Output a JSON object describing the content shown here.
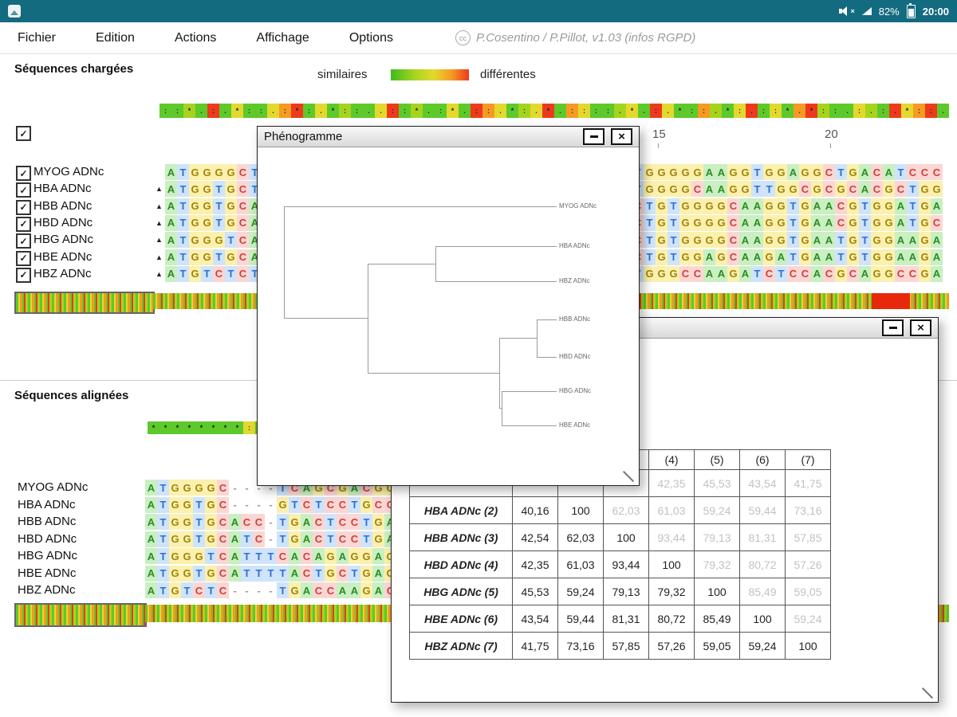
{
  "status_bar": {
    "battery": "82%",
    "time": "20:00"
  },
  "menu": {
    "items": [
      "Fichier",
      "Edition",
      "Actions",
      "Affichage",
      "Options"
    ],
    "credit_icon": "cc",
    "credit": "P.Cosentino / P.Pillot, v1.03 (infos RGPD)"
  },
  "palette": {
    "g": "#5ec92a",
    "e": "#a6d41e",
    "y": "#e3d92e",
    "o": "#f59a23",
    "r": "#ee3a1c"
  },
  "nt_colors": {
    "A": {
      "bg": "#c9efc2",
      "fg": "#2e8b22"
    },
    "T": {
      "bg": "#cfe4fb",
      "fg": "#2f6fd0"
    },
    "G": {
      "bg": "#fbf0ae",
      "fg": "#a08508"
    },
    "C": {
      "bg": "#fbd7d4",
      "fg": "#d04038"
    },
    "-": {
      "bg": "transparent",
      "fg": "#9a9a9a"
    }
  },
  "loaded_section": {
    "title": "Séquences chargées",
    "legend_left": "similaires",
    "legend_right": "différentes",
    "ruler": [
      "15",
      "20"
    ],
    "consensus": {
      "colors": "ggegrgyggyorgygeggyrgeggygroygeyrgoyggeygryggoegyrgygoreggyegryorg",
      "symbols": "::*.:.*::.:*:.*::..::*.:*.::.*:.*.::::.*.:.*::.*:.::*.*::.:.:.*::."
    },
    "sequences": [
      {
        "name": "MYOG ADNc",
        "checked": true,
        "marker": "",
        "left": "ATGGGGCTC",
        "right": "TGGGGGAAGGTGGAGGCTGACATCCC"
      },
      {
        "name": "HBA ADNc",
        "checked": true,
        "marker": "▲",
        "left": "ATGGTGCTG",
        "right": "TGGGGCAAGGTTGGCGCGCACGCTGG"
      },
      {
        "name": "HBB ADNc",
        "checked": true,
        "marker": "▲",
        "left": "ATGGTGCAC",
        "right": "CTGTGGGGCAAGGTGAACGTGGATGA"
      },
      {
        "name": "HBD ADNc",
        "checked": true,
        "marker": "▲",
        "left": "ATGGTGCAT",
        "right": "CTGTGGGGCAAGGTGAACGTGGATGC"
      },
      {
        "name": "HBG ADNc",
        "checked": true,
        "marker": "▲",
        "left": "ATGGGTCAT",
        "right": "CTGTGGGGCAAGGTGAATGTGGAAGA"
      },
      {
        "name": "HBE ADNc",
        "checked": true,
        "marker": "▲",
        "left": "ATGGTGCAT",
        "right": "CTGTGGAGCAAGATGAATGTGGAAGA"
      },
      {
        "name": "HBZ ADNc",
        "checked": true,
        "marker": "▲",
        "left": "ATGTCTCTG",
        "right": "TGGGCCAAGATCTCCACGCAGGCCGA"
      }
    ]
  },
  "aligned_section": {
    "title": "Séquences alignées",
    "consensus": {
      "colors": "ggggggggyggrggggyggggrggyggggogggggygggg",
      "symbols": "********:**.****:****.**:****.*****:****"
    },
    "sequences": [
      {
        "name": "MYOG ADNc",
        "seq": "ATGGGGC----TCAGCGACGG"
      },
      {
        "name": "HBA ADNc",
        "seq": "ATGGTGC----GTCTCCTGCC"
      },
      {
        "name": "HBB ADNc",
        "seq": "ATGGTGCACC-TGACTCCTGA"
      },
      {
        "name": "HBD ADNc",
        "seq": "ATGGTGCATC-TGACTCCTGA"
      },
      {
        "name": "HBG ADNc",
        "seq": "ATGGGTCATTTCACAGAGGAG"
      },
      {
        "name": "HBE ADNc",
        "seq": "ATGGTGCATTTTACTGCTGAG"
      },
      {
        "name": "HBZ ADNc",
        "seq": "ATGTCTC----TGACCAAGAC"
      }
    ]
  },
  "phenogram_window": {
    "title": "Phénogramme",
    "leaves": [
      "MYOG ADNc",
      "HBA ADNc",
      "HBZ ADNc",
      "HBB ADNc",
      "HBD ADNc",
      "HBG ADNc",
      "HBE ADNc"
    ]
  },
  "matrix_window": {
    "title": "",
    "columns": [
      "",
      "",
      "",
      "(4)",
      "(5)",
      "(6)",
      "(7)"
    ],
    "rows": [
      {
        "label": "",
        "values": [
          "",
          "",
          "",
          "42,35",
          "45,53",
          "43,54",
          "41,75"
        ],
        "black_count": 1
      },
      {
        "label": "HBA ADNc (2)",
        "values": [
          "40,16",
          "100",
          "62,03",
          "61,03",
          "59,24",
          "59,44",
          "73,16"
        ],
        "black_count": 2
      },
      {
        "label": "HBB ADNc (3)",
        "values": [
          "42,54",
          "62,03",
          "100",
          "93,44",
          "79,13",
          "81,31",
          "57,85"
        ],
        "black_count": 3
      },
      {
        "label": "HBD ADNc (4)",
        "values": [
          "42,35",
          "61,03",
          "93,44",
          "100",
          "79,32",
          "80,72",
          "57,26"
        ],
        "black_count": 4
      },
      {
        "label": "HBG ADNc (5)",
        "values": [
          "45,53",
          "59,24",
          "79,13",
          "79,32",
          "100",
          "85,49",
          "59,05"
        ],
        "black_count": 5
      },
      {
        "label": "HBE ADNc (6)",
        "values": [
          "43,54",
          "59,44",
          "81,31",
          "80,72",
          "85,49",
          "100",
          "59,24"
        ],
        "black_count": 6
      },
      {
        "label": "HBZ ADNc (7)",
        "values": [
          "41,75",
          "73,16",
          "57,85",
          "57,26",
          "59,05",
          "59,24",
          "100"
        ],
        "black_count": 7
      }
    ]
  }
}
